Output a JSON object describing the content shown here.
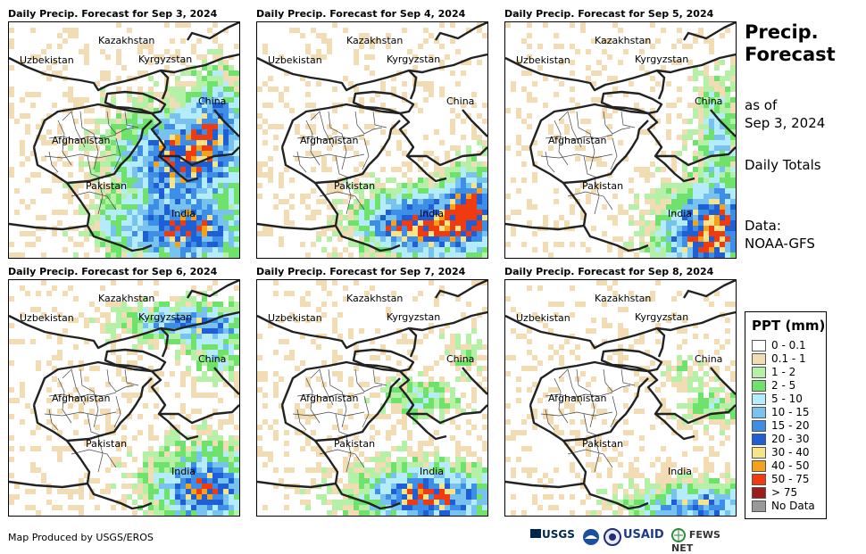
{
  "panels": [
    {
      "title": "Daily Precip. Forecast for Sep 3, 2024",
      "seed": 3,
      "profile": "north"
    },
    {
      "title": "Daily Precip. Forecast for Sep 4, 2024",
      "seed": 4,
      "profile": "india"
    },
    {
      "title": "Daily Precip. Forecast for Sep 5, 2024",
      "seed": 5,
      "profile": "india_east"
    },
    {
      "title": "Daily Precip. Forecast for Sep 6, 2024",
      "seed": 6,
      "profile": "kyrgyz"
    },
    {
      "title": "Daily Precip. Forecast for Sep 7, 2024",
      "seed": 7,
      "profile": "india_south"
    },
    {
      "title": "Daily Precip. Forecast for Sep 8, 2024",
      "seed": 8,
      "profile": "dry"
    }
  ],
  "map_labels": {
    "kazakhstan": "Kazakhstan",
    "uzbekistan": "Uzbekistan",
    "kyrgyzstan": "Kyrgyzstan",
    "china": "China",
    "afghanistan": "Afghanistan",
    "pakistan": "Pakistan",
    "india": "India"
  },
  "side": {
    "title_line1": "Precip.",
    "title_line2": "Forecast",
    "as_of_line1": "as of",
    "as_of_line2": "Sep 3, 2024",
    "totals": "Daily Totals",
    "data_line1": "Data:",
    "data_line2": "NOAA-GFS"
  },
  "legend": {
    "title": "PPT (mm)",
    "items": [
      {
        "label": "0 - 0.1",
        "color": "#ffffff"
      },
      {
        "label": "0.1 - 1",
        "color": "#f2dcb4"
      },
      {
        "label": "1 - 2",
        "color": "#b4f0a6"
      },
      {
        "label": "2 - 5",
        "color": "#6ee26a"
      },
      {
        "label": "5 - 10",
        "color": "#b4ecfb"
      },
      {
        "label": "10 - 15",
        "color": "#78c2f0"
      },
      {
        "label": "15 - 20",
        "color": "#3d8ee6"
      },
      {
        "label": "20 - 30",
        "color": "#1f5fd6"
      },
      {
        "label": "30 - 40",
        "color": "#f7e48a"
      },
      {
        "label": "40 - 50",
        "color": "#f5a21a"
      },
      {
        "label": "50 - 75",
        "color": "#f03a10"
      },
      {
        "label": "> 75",
        "color": "#9c1c1c"
      },
      {
        "label": "No Data",
        "color": "#999999"
      }
    ]
  },
  "credit": "Map Produced by USGS/EROS",
  "logos": {
    "usgs": "USGS",
    "usaid": "USAID",
    "fewsnet": "FEWS NET"
  }
}
